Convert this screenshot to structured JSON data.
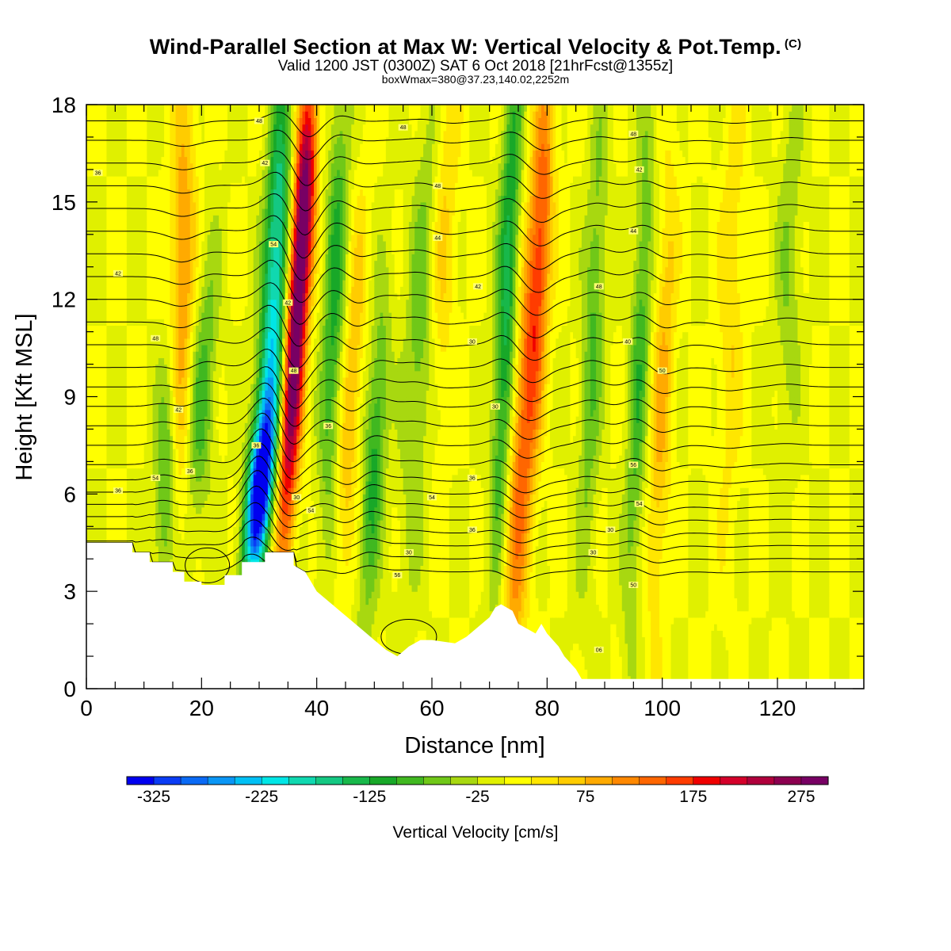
{
  "header": {
    "title": "Wind-Parallel Section at Max W: Vertical Velocity & Pot.Temp.",
    "copyright": "(C)",
    "valid_line": "Valid 1200 JST (0300Z) SAT 6 Oct 2018 [21hrFcst@1355z]",
    "box_line": "boxWmax=380@37.23,140.02,2252m"
  },
  "chart_data": {
    "type": "heatmap",
    "xlabel": "Distance [nm]",
    "ylabel": "Height [Kft MSL]",
    "xlim": [
      0,
      135
    ],
    "ylim": [
      0,
      18
    ],
    "x_ticks": [
      0,
      20,
      40,
      60,
      80,
      100,
      120
    ],
    "y_ticks": [
      0,
      3,
      6,
      9,
      12,
      15,
      18
    ],
    "colorbar": {
      "label": "Vertical Velocity [cm/s]",
      "min": -350,
      "max": 300,
      "step": 25,
      "tick_labels": [
        "-325",
        "-225",
        "-125",
        "-25",
        "75",
        "175",
        "275"
      ],
      "colors": [
        "#0000f0",
        "#0a3cf5",
        "#0a6af5",
        "#0a96f5",
        "#00c0f5",
        "#00e6e6",
        "#10d8b0",
        "#14c882",
        "#18b84a",
        "#18a828",
        "#40b820",
        "#70c818",
        "#a8d810",
        "#e0f000",
        "#ffff00",
        "#ffe600",
        "#ffcc00",
        "#ffaa00",
        "#ff8800",
        "#ff6600",
        "#ff3c00",
        "#f00000",
        "#d4002a",
        "#b0003c",
        "#8c0050",
        "#780064"
      ]
    },
    "terrain_kft": [
      [
        0,
        4.5
      ],
      [
        8,
        4.5
      ],
      [
        8,
        4.2
      ],
      [
        11,
        4.2
      ],
      [
        11,
        3.9
      ],
      [
        15,
        3.9
      ],
      [
        15,
        3.6
      ],
      [
        17,
        3.6
      ],
      [
        17,
        3.3
      ],
      [
        20,
        3.3
      ],
      [
        20,
        3.2
      ],
      [
        24,
        3.2
      ],
      [
        24,
        3.5
      ],
      [
        27,
        3.5
      ],
      [
        27,
        3.9
      ],
      [
        31,
        3.9
      ],
      [
        31,
        4.2
      ],
      [
        36,
        4.2
      ],
      [
        36,
        3.8
      ],
      [
        38,
        3.6
      ],
      [
        39,
        3.3
      ],
      [
        40,
        3.0
      ],
      [
        42,
        2.7
      ],
      [
        44,
        2.4
      ],
      [
        46,
        2.1
      ],
      [
        48,
        1.8
      ],
      [
        50,
        1.5
      ],
      [
        52,
        1.2
      ],
      [
        54,
        1.0
      ],
      [
        56,
        1.3
      ],
      [
        58,
        1.5
      ],
      [
        60,
        1.5
      ],
      [
        64,
        1.4
      ],
      [
        66,
        1.6
      ],
      [
        68,
        1.9
      ],
      [
        70,
        2.2
      ],
      [
        71,
        2.5
      ],
      [
        72,
        2.6
      ],
      [
        74,
        2.4
      ],
      [
        75,
        2.0
      ],
      [
        77,
        1.8
      ],
      [
        78,
        1.7
      ],
      [
        79,
        2.0
      ],
      [
        80,
        1.7
      ],
      [
        82,
        1.3
      ],
      [
        83,
        1.0
      ],
      [
        85,
        0.6
      ],
      [
        86,
        0.3
      ],
      [
        135,
        0.3
      ]
    ],
    "w_features": [
      {
        "x": 30,
        "z": 6.0,
        "w": -320,
        "sx": 1.5,
        "sz": 1.8,
        "tilt": 0.55
      },
      {
        "x": 32,
        "z": 9.5,
        "w": -180,
        "sx": 1.6,
        "sz": 3.5,
        "tilt": 0.45
      },
      {
        "x": 33,
        "z": 15.0,
        "w": -140,
        "sx": 1.4,
        "sz": 3.0,
        "tilt": 0.3
      },
      {
        "x": 36,
        "z": 10.0,
        "w": 300,
        "sx": 1.3,
        "sz": 4.0,
        "tilt": 0.3
      },
      {
        "x": 38,
        "z": 15.5,
        "w": 200,
        "sx": 1.3,
        "sz": 2.5,
        "tilt": 0.25
      },
      {
        "x": 16.5,
        "z": 12.0,
        "w": 110,
        "sx": 1.6,
        "sz": 5.0,
        "tilt": 0.1
      },
      {
        "x": 14,
        "z": 7.0,
        "w": -100,
        "sx": 1.4,
        "sz": 3.0,
        "tilt": 0.2
      },
      {
        "x": 20,
        "z": 9.0,
        "w": -90,
        "sx": 1.6,
        "sz": 3.0,
        "tilt": 0.3
      },
      {
        "x": 43,
        "z": 12.0,
        "w": -110,
        "sx": 1.3,
        "sz": 5.0,
        "tilt": 0.2
      },
      {
        "x": 46,
        "z": 9.0,
        "w": 80,
        "sx": 1.2,
        "sz": 4.0,
        "tilt": 0.3
      },
      {
        "x": 50,
        "z": 7.0,
        "w": -110,
        "sx": 1.3,
        "sz": 3.5,
        "tilt": 0.3
      },
      {
        "x": 58,
        "z": 11.0,
        "w": -70,
        "sx": 1.8,
        "sz": 5.0,
        "tilt": 0.25
      },
      {
        "x": 62,
        "z": 14.0,
        "w": 60,
        "sx": 1.6,
        "sz": 4.0,
        "tilt": 0.2
      },
      {
        "x": 76,
        "z": 8.0,
        "w": 140,
        "sx": 1.7,
        "sz": 6.0,
        "tilt": 0.35
      },
      {
        "x": 73,
        "z": 12.0,
        "w": -140,
        "sx": 1.3,
        "sz": 6.0,
        "tilt": 0.2
      },
      {
        "x": 79,
        "z": 14.0,
        "w": 90,
        "sx": 1.3,
        "sz": 4.0,
        "tilt": 0.2
      },
      {
        "x": 88,
        "z": 11.0,
        "w": -80,
        "sx": 1.3,
        "sz": 5.0,
        "tilt": 0.2
      },
      {
        "x": 96,
        "z": 10.0,
        "w": -90,
        "sx": 1.2,
        "sz": 6.0,
        "tilt": 0.2
      },
      {
        "x": 100,
        "z": 9.0,
        "w": 80,
        "sx": 1.3,
        "sz": 5.0,
        "tilt": 0.2
      },
      {
        "x": 112,
        "z": 12.0,
        "w": 50,
        "sx": 1.5,
        "sz": 5.0,
        "tilt": 0.1
      },
      {
        "x": 122,
        "z": 13.0,
        "w": -50,
        "sx": 1.5,
        "sz": 4.0,
        "tilt": 0.1
      }
    ],
    "theta_isentropes_kft": [
      3.6,
      4.0,
      4.4,
      4.8,
      5.2,
      5.6,
      6.0,
      6.4,
      6.9,
      7.5,
      8.1,
      8.7,
      9.3,
      9.9,
      10.6,
      11.3,
      12.0,
      12.7,
      13.4,
      14.1,
      14.8,
      15.5,
      16.2,
      16.9,
      17.5
    ],
    "contour_labels": [
      {
        "x": 5.5,
        "z": 6.1,
        "text": "36"
      },
      {
        "x": 12,
        "z": 6.5,
        "text": "54"
      },
      {
        "x": 18,
        "z": 6.7,
        "text": "36"
      },
      {
        "x": 16,
        "z": 8.6,
        "text": "42"
      },
      {
        "x": 12,
        "z": 10.8,
        "text": "48"
      },
      {
        "x": 5.5,
        "z": 12.8,
        "text": "42"
      },
      {
        "x": 2,
        "z": 15.9,
        "text": "36"
      },
      {
        "x": 29.5,
        "z": 7.5,
        "text": "36"
      },
      {
        "x": 30,
        "z": 17.5,
        "text": "48"
      },
      {
        "x": 31,
        "z": 16.2,
        "text": "42"
      },
      {
        "x": 32.5,
        "z": 13.7,
        "text": "54"
      },
      {
        "x": 35,
        "z": 11.9,
        "text": "42"
      },
      {
        "x": 36,
        "z": 9.8,
        "text": "48"
      },
      {
        "x": 36.5,
        "z": 5.9,
        "text": "30"
      },
      {
        "x": 39,
        "z": 5.5,
        "text": "54"
      },
      {
        "x": 42,
        "z": 8.1,
        "text": "36"
      },
      {
        "x": 55,
        "z": 17.3,
        "text": "48"
      },
      {
        "x": 61,
        "z": 15.5,
        "text": "48"
      },
      {
        "x": 61,
        "z": 13.9,
        "text": "44"
      },
      {
        "x": 68,
        "z": 12.4,
        "text": "42"
      },
      {
        "x": 67,
        "z": 10.7,
        "text": "30"
      },
      {
        "x": 71,
        "z": 8.7,
        "text": "30"
      },
      {
        "x": 67,
        "z": 6.5,
        "text": "36"
      },
      {
        "x": 60,
        "z": 5.9,
        "text": "54"
      },
      {
        "x": 67,
        "z": 4.9,
        "text": "36"
      },
      {
        "x": 56,
        "z": 4.2,
        "text": "30"
      },
      {
        "x": 54,
        "z": 3.5,
        "text": "56"
      },
      {
        "x": 95,
        "z": 17.1,
        "text": "48"
      },
      {
        "x": 96,
        "z": 16.0,
        "text": "42"
      },
      {
        "x": 95,
        "z": 14.1,
        "text": "44"
      },
      {
        "x": 89,
        "z": 12.4,
        "text": "48"
      },
      {
        "x": 94,
        "z": 10.7,
        "text": "40"
      },
      {
        "x": 100,
        "z": 9.8,
        "text": "50"
      },
      {
        "x": 95,
        "z": 6.9,
        "text": "56"
      },
      {
        "x": 96,
        "z": 5.7,
        "text": "54"
      },
      {
        "x": 91,
        "z": 4.9,
        "text": "30"
      },
      {
        "x": 88,
        "z": 4.2,
        "text": "30"
      },
      {
        "x": 95,
        "z": 3.2,
        "text": "50"
      },
      {
        "x": 89,
        "z": 1.2,
        "text": "06"
      }
    ]
  }
}
